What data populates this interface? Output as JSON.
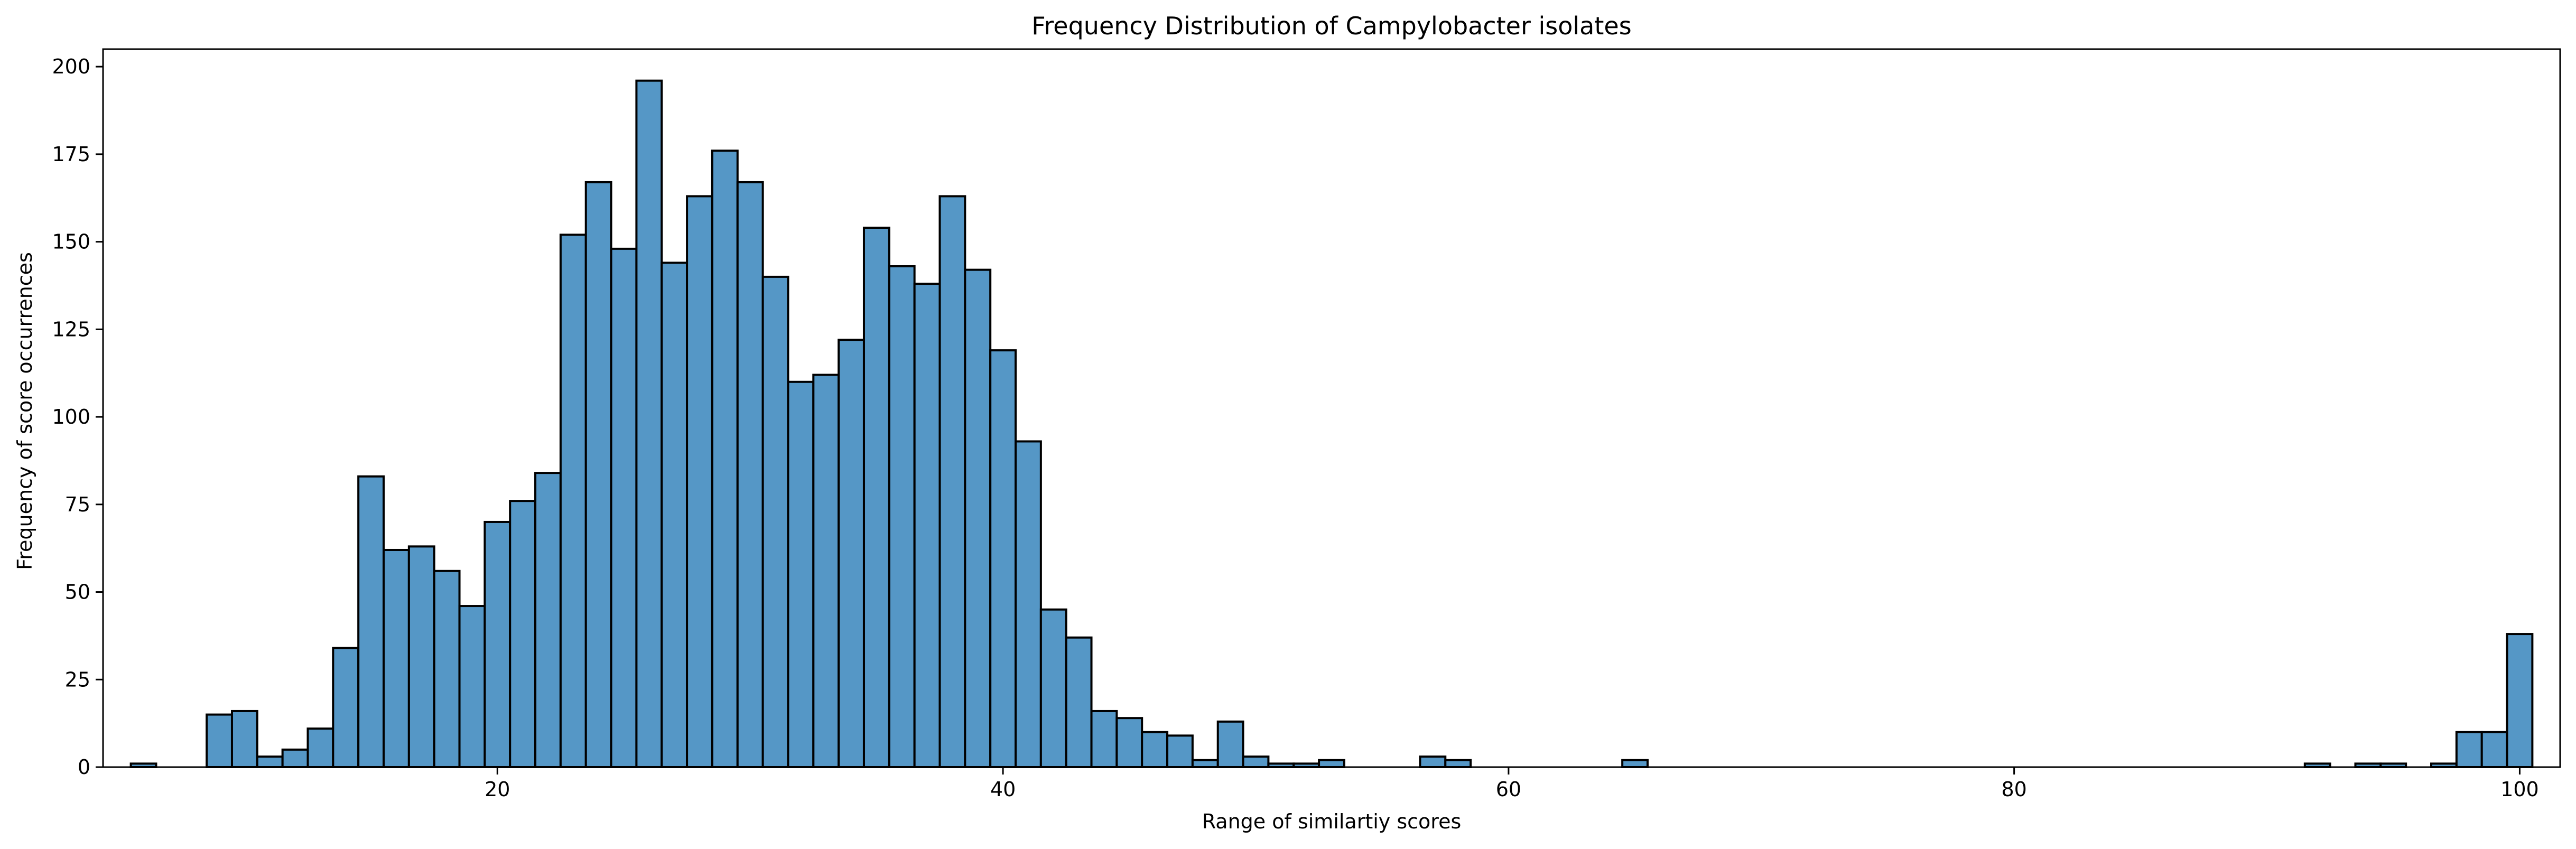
{
  "chart_data": {
    "type": "bar",
    "title": "Frequency Distribution of Campylobacter isolates",
    "xlabel": "Range of similartiy scores",
    "ylabel": "Frequency of score occurrences",
    "xlim": [
      4.4,
      101.6
    ],
    "ylim": [
      0,
      205
    ],
    "xticks": [
      20,
      40,
      60,
      80,
      100
    ],
    "yticks": [
      0,
      25,
      50,
      75,
      100,
      125,
      150,
      175,
      200
    ],
    "grid": false,
    "bar_color": "#5597c6",
    "edge_color": "#000000",
    "bin_start": 5.5,
    "bin_width": 1.0,
    "values": [
      1,
      0,
      0,
      15,
      16,
      3,
      5,
      11,
      34,
      83,
      62,
      63,
      56,
      46,
      70,
      76,
      84,
      152,
      167,
      148,
      196,
      144,
      163,
      176,
      167,
      140,
      110,
      112,
      122,
      154,
      143,
      138,
      163,
      142,
      119,
      93,
      45,
      37,
      16,
      14,
      10,
      9,
      2,
      13,
      3,
      1,
      1,
      2,
      0,
      0,
      0,
      3,
      2,
      0,
      0,
      0,
      0,
      0,
      0,
      2,
      0,
      0,
      0,
      0,
      0,
      0,
      0,
      0,
      0,
      0,
      0,
      0,
      0,
      0,
      0,
      0,
      0,
      0,
      0,
      0,
      0,
      0,
      0,
      0,
      0,
      0,
      1,
      0,
      1,
      1,
      0,
      1,
      10,
      10,
      38
    ]
  }
}
